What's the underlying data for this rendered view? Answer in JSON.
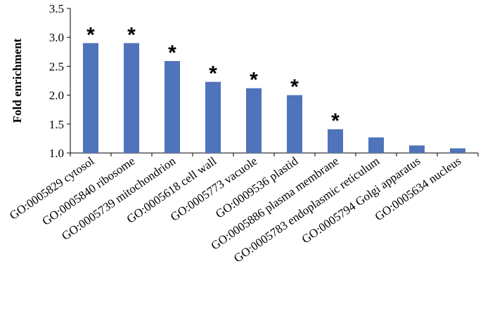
{
  "chart_data": {
    "type": "bar",
    "title": "",
    "xlabel": "",
    "ylabel": "Fold enrichment",
    "ylim": [
      1.0,
      3.5
    ],
    "yticks": [
      "1.0",
      "1.5",
      "2.0",
      "2.5",
      "3.0",
      "3.5"
    ],
    "grid": false,
    "categories": [
      "GO:0005829 cytosol",
      "GO:0005840 ribosome",
      "GO:0005739 mitochondrion",
      "GO:0005618 cell wall",
      "GO:0005773 vacuole",
      "GO:0009536 plastid",
      "GO:0005886 plasma membrane",
      "GO:0005783 endoplasmic reticulum",
      "GO:0005794 Golgi apparatus",
      "GO:0005634 nucleus"
    ],
    "values": [
      2.9,
      2.9,
      2.59,
      2.23,
      2.12,
      2.0,
      1.41,
      1.27,
      1.13,
      1.08
    ],
    "annotations": [
      "*",
      "*",
      "*",
      "*",
      "*",
      "*",
      "*",
      "",
      "",
      ""
    ],
    "bar_color": "#4f74bb",
    "axis_color": "#000000"
  }
}
